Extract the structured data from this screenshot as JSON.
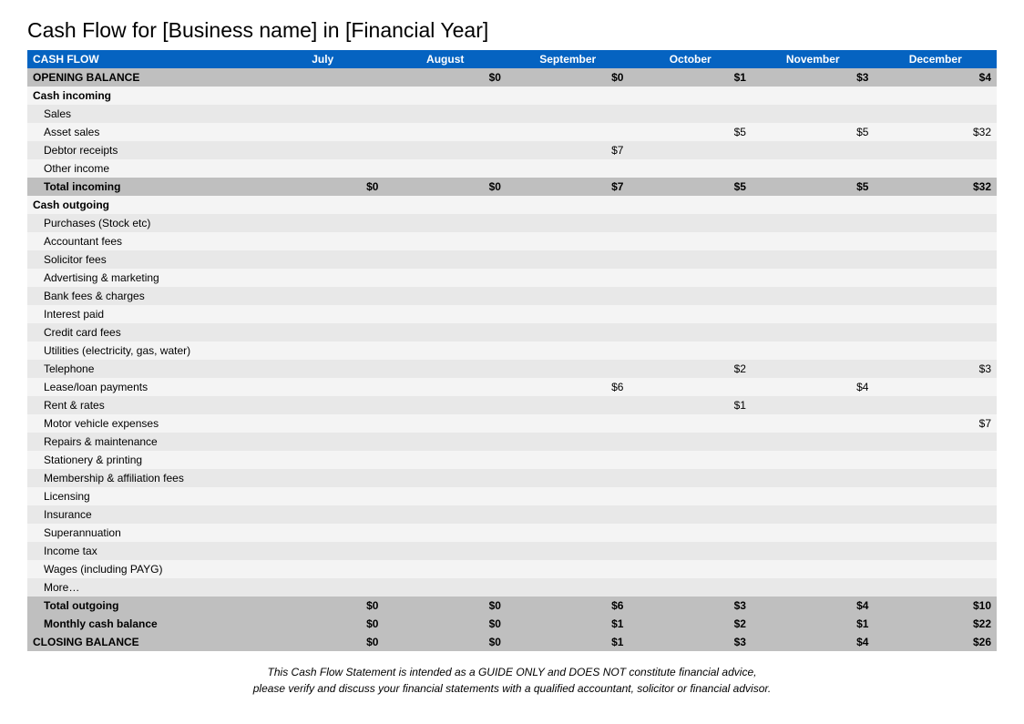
{
  "title": "Cash Flow for [Business name] in [Financial Year]",
  "header": {
    "label": "CASH FLOW",
    "months": [
      "July",
      "August",
      "September",
      "October",
      "November",
      "December"
    ]
  },
  "rows": [
    {
      "type": "gray",
      "label": "OPENING BALANCE",
      "values": [
        "",
        "$0",
        "$0",
        "$1",
        "$3",
        "$4"
      ]
    },
    {
      "type": "section",
      "label": "Cash incoming",
      "values": [
        "",
        "",
        "",
        "",
        "",
        ""
      ],
      "alt": "odd"
    },
    {
      "type": "indent",
      "label": "Sales",
      "values": [
        "",
        "",
        "",
        "",
        "",
        ""
      ],
      "alt": "even"
    },
    {
      "type": "indent",
      "label": "Asset sales",
      "values": [
        "",
        "",
        "",
        "$5",
        "$5",
        "$32"
      ],
      "alt": "odd"
    },
    {
      "type": "indent",
      "label": "Debtor receipts",
      "values": [
        "",
        "",
        "$7",
        "",
        "",
        ""
      ],
      "alt": "even"
    },
    {
      "type": "indent",
      "label": "Other income",
      "values": [
        "",
        "",
        "",
        "",
        "",
        ""
      ],
      "alt": "odd"
    },
    {
      "type": "subtotal",
      "label": "Total incoming",
      "values": [
        "$0",
        "$0",
        "$7",
        "$5",
        "$5",
        "$32"
      ]
    },
    {
      "type": "section",
      "label": "Cash outgoing",
      "values": [
        "",
        "",
        "",
        "",
        "",
        ""
      ],
      "alt": "odd"
    },
    {
      "type": "indent",
      "label": "Purchases (Stock etc)",
      "values": [
        "",
        "",
        "",
        "",
        "",
        ""
      ],
      "alt": "even"
    },
    {
      "type": "indent",
      "label": "Accountant fees",
      "values": [
        "",
        "",
        "",
        "",
        "",
        ""
      ],
      "alt": "odd"
    },
    {
      "type": "indent",
      "label": "Solicitor fees",
      "values": [
        "",
        "",
        "",
        "",
        "",
        ""
      ],
      "alt": "even"
    },
    {
      "type": "indent",
      "label": "Advertising & marketing",
      "values": [
        "",
        "",
        "",
        "",
        "",
        ""
      ],
      "alt": "odd"
    },
    {
      "type": "indent",
      "label": "Bank fees & charges",
      "values": [
        "",
        "",
        "",
        "",
        "",
        ""
      ],
      "alt": "even"
    },
    {
      "type": "indent",
      "label": "Interest paid",
      "values": [
        "",
        "",
        "",
        "",
        "",
        ""
      ],
      "alt": "odd"
    },
    {
      "type": "indent",
      "label": "Credit card fees",
      "values": [
        "",
        "",
        "",
        "",
        "",
        ""
      ],
      "alt": "even"
    },
    {
      "type": "indent",
      "label": "Utilities (electricity, gas, water)",
      "values": [
        "",
        "",
        "",
        "",
        "",
        ""
      ],
      "alt": "odd"
    },
    {
      "type": "indent",
      "label": "Telephone",
      "values": [
        "",
        "",
        "",
        "$2",
        "",
        "$3"
      ],
      "alt": "even"
    },
    {
      "type": "indent",
      "label": "Lease/loan payments",
      "values": [
        "",
        "",
        "$6",
        "",
        "$4",
        ""
      ],
      "alt": "odd"
    },
    {
      "type": "indent",
      "label": "Rent & rates",
      "values": [
        "",
        "",
        "",
        "$1",
        "",
        ""
      ],
      "alt": "even"
    },
    {
      "type": "indent",
      "label": "Motor vehicle expenses",
      "values": [
        "",
        "",
        "",
        "",
        "",
        "$7"
      ],
      "alt": "odd"
    },
    {
      "type": "indent",
      "label": "Repairs & maintenance",
      "values": [
        "",
        "",
        "",
        "",
        "",
        ""
      ],
      "alt": "even"
    },
    {
      "type": "indent",
      "label": "Stationery & printing",
      "values": [
        "",
        "",
        "",
        "",
        "",
        ""
      ],
      "alt": "odd"
    },
    {
      "type": "indent",
      "label": "Membership & affiliation fees",
      "values": [
        "",
        "",
        "",
        "",
        "",
        ""
      ],
      "alt": "even"
    },
    {
      "type": "indent",
      "label": "Licensing",
      "values": [
        "",
        "",
        "",
        "",
        "",
        ""
      ],
      "alt": "odd"
    },
    {
      "type": "indent",
      "label": "Insurance",
      "values": [
        "",
        "",
        "",
        "",
        "",
        ""
      ],
      "alt": "even"
    },
    {
      "type": "indent",
      "label": "Superannuation",
      "values": [
        "",
        "",
        "",
        "",
        "",
        ""
      ],
      "alt": "odd"
    },
    {
      "type": "indent",
      "label": "Income tax",
      "values": [
        "",
        "",
        "",
        "",
        "",
        ""
      ],
      "alt": "even"
    },
    {
      "type": "indent",
      "label": "Wages (including PAYG)",
      "values": [
        "",
        "",
        "",
        "",
        "",
        ""
      ],
      "alt": "odd"
    },
    {
      "type": "indent",
      "label": "More…",
      "values": [
        "",
        "",
        "",
        "",
        "",
        ""
      ],
      "alt": "even"
    },
    {
      "type": "subtotal",
      "label": "Total outgoing",
      "values": [
        "$0",
        "$0",
        "$6",
        "$3",
        "$4",
        "$10"
      ]
    },
    {
      "type": "subtotal",
      "label": "Monthly cash balance",
      "values": [
        "$0",
        "$0",
        "$1",
        "$2",
        "$1",
        "$22"
      ]
    },
    {
      "type": "gray",
      "label": "CLOSING BALANCE",
      "values": [
        "$0",
        "$0",
        "$1",
        "$3",
        "$4",
        "$26"
      ]
    }
  ],
  "footnote": {
    "line1": "This Cash Flow Statement is intended as a GUIDE ONLY and DOES NOT constitute financial advice,",
    "line2": "please verify and discuss your financial statements with a qualified accountant, solicitor or financial advisor."
  },
  "colors": {
    "header_bg": "#0563c1",
    "header_fg": "#ffffff",
    "gray_bg": "#bfbfbf",
    "row_even": "#e8e8e8",
    "row_odd": "#f4f4f4"
  }
}
